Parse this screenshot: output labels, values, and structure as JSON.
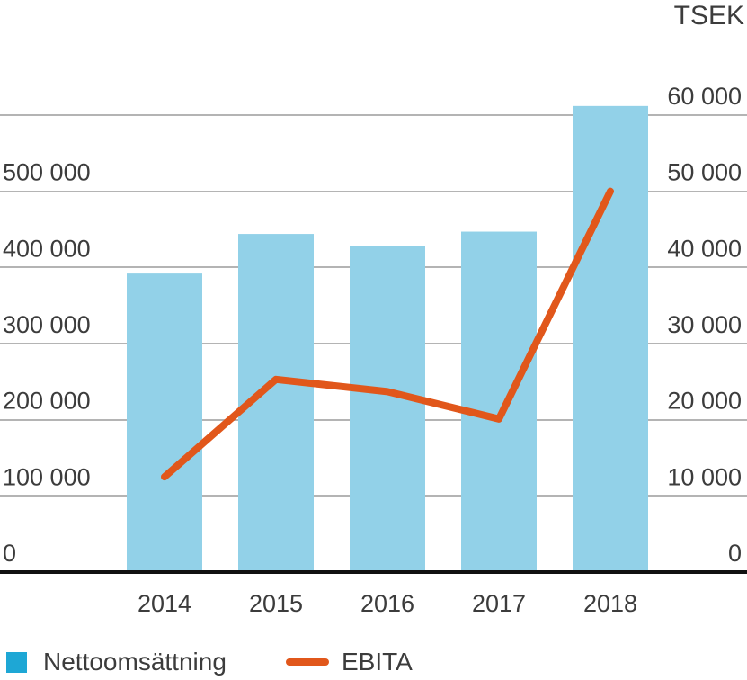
{
  "chart_data": {
    "type": "bar",
    "unit_label": "TSEK",
    "categories": [
      "2014",
      "2015",
      "2016",
      "2017",
      "2018"
    ],
    "series": [
      {
        "name": "Nettoomsättning",
        "type": "bar",
        "axis": "left",
        "values": [
          392000,
          444000,
          428000,
          447000,
          612000
        ],
        "color": "#92d1e8"
      },
      {
        "name": "EBITA",
        "type": "line",
        "axis": "right",
        "values": [
          12500,
          25300,
          23700,
          20100,
          50000
        ],
        "color": "#e1571b"
      }
    ],
    "left_axis": {
      "ylim": [
        0,
        600000
      ],
      "ticks": [
        0,
        100000,
        200000,
        300000,
        400000,
        500000
      ],
      "tick_labels": [
        "0",
        "100 000",
        "200 000",
        "300 000",
        "400 000",
        "500 000"
      ]
    },
    "right_axis": {
      "ylim": [
        0,
        60000
      ],
      "ticks": [
        0,
        10000,
        20000,
        30000,
        40000,
        50000,
        60000
      ],
      "tick_labels": [
        "0",
        "10 000",
        "20 000",
        "30 000",
        "40 000",
        "50 000",
        "60 000"
      ]
    },
    "grid": true,
    "legend_position": "bottom-left",
    "legend_bar_color": "#1ea7d5"
  }
}
